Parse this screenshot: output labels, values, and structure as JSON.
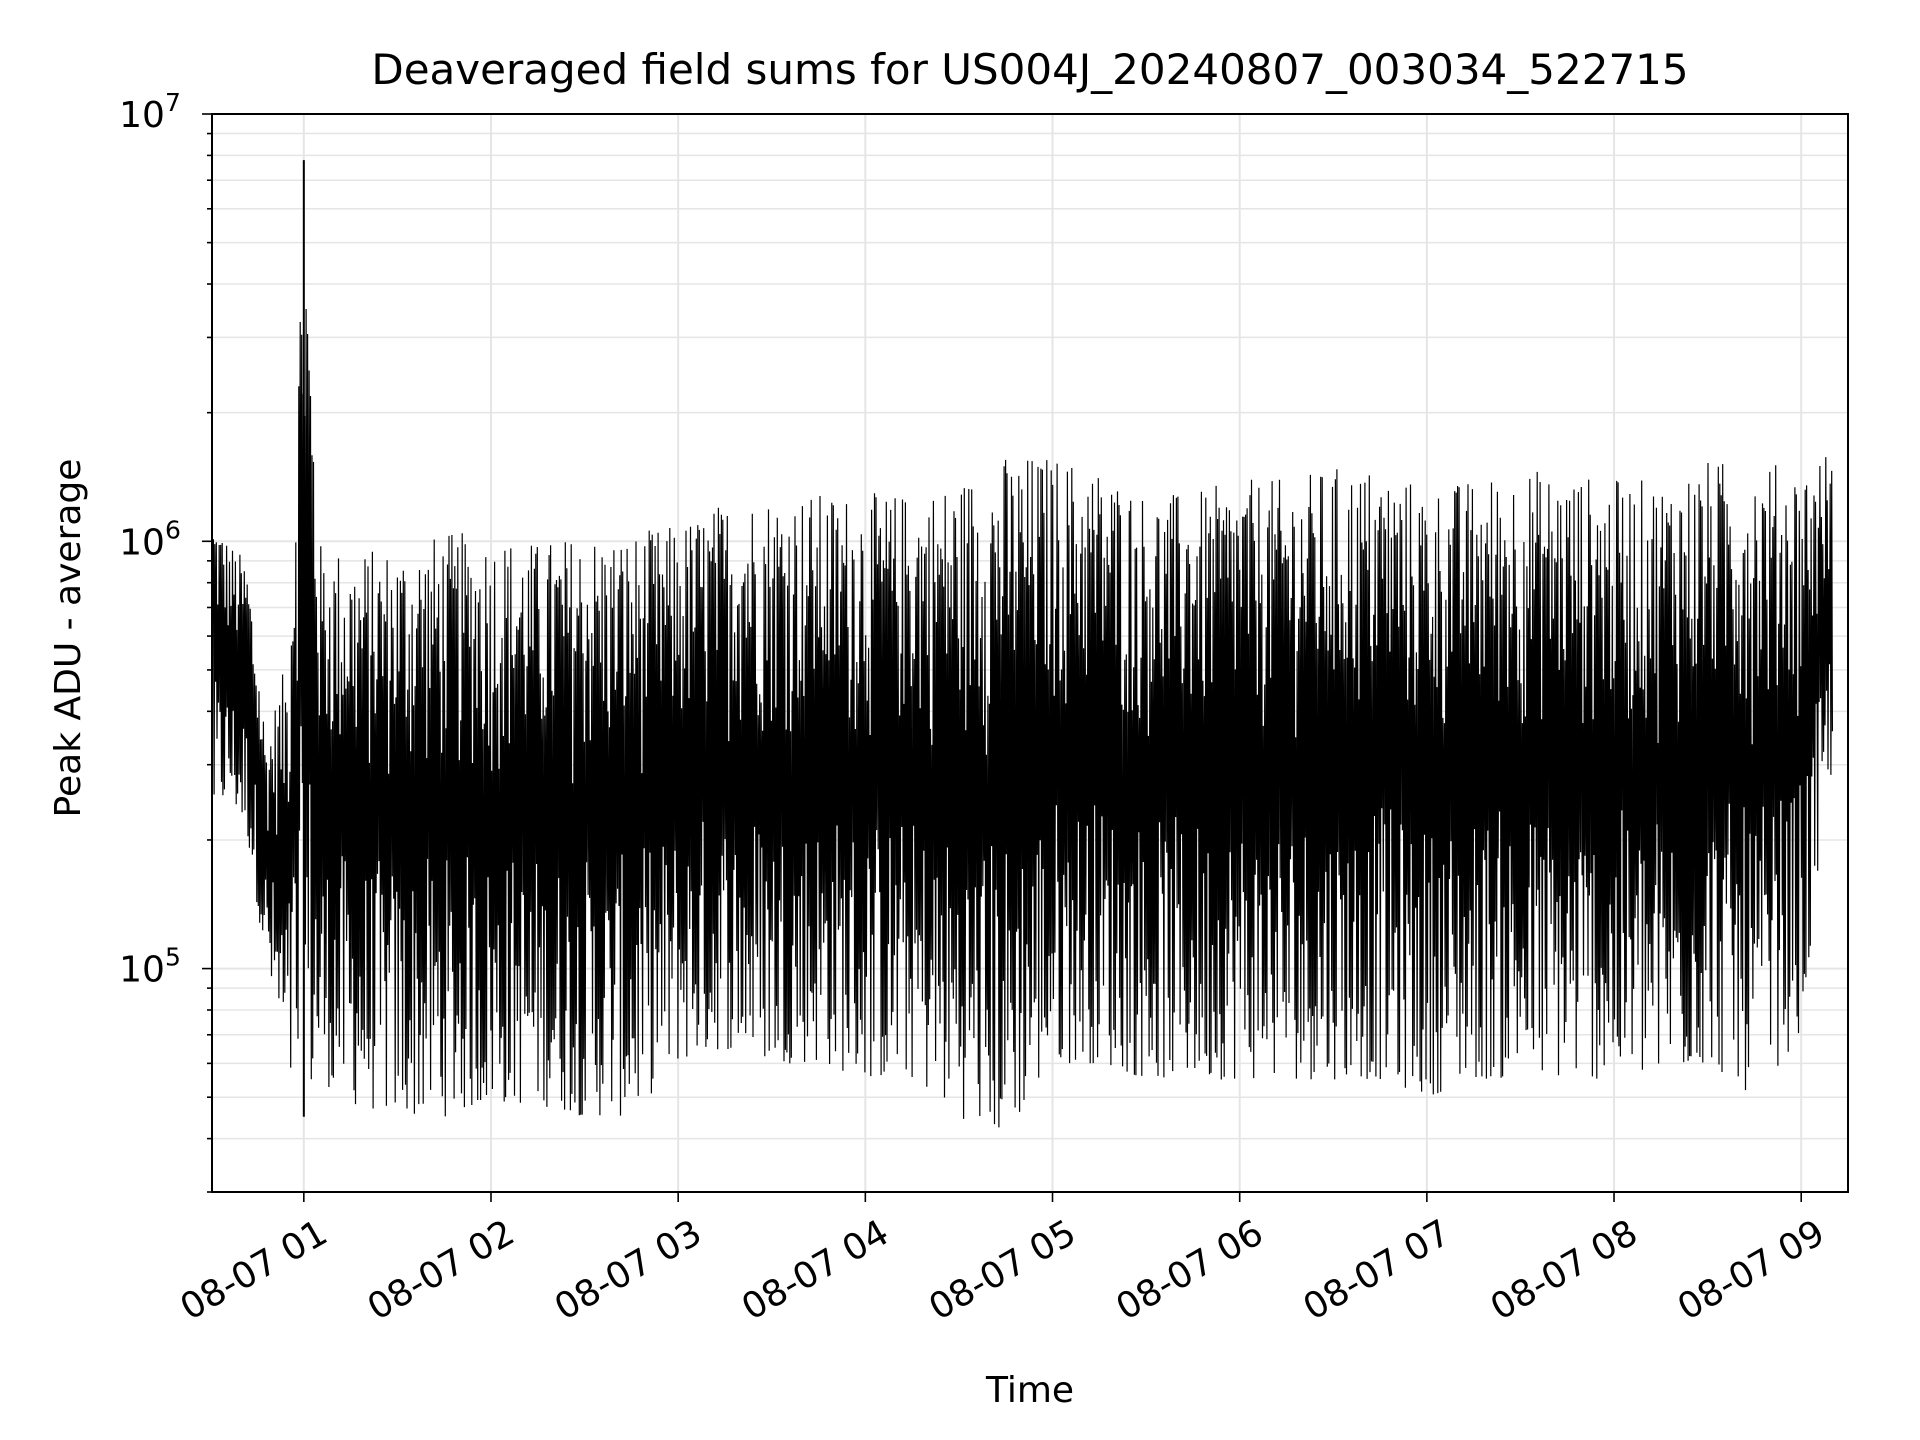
{
  "chart_data": {
    "type": "line",
    "title": "Deaveraged field sums for US004J_20240807_003034_522715",
    "xlabel": "Time",
    "ylabel": "Peak ADU - average",
    "x_axis": {
      "kind": "datetime",
      "range": [
        "2024-08-07T00:30:34",
        "2024-08-07T09:15:00"
      ],
      "ticks": [
        {
          "t": "2024-08-07T01:00",
          "label": "08-07 01"
        },
        {
          "t": "2024-08-07T02:00",
          "label": "08-07 02"
        },
        {
          "t": "2024-08-07T03:00",
          "label": "08-07 03"
        },
        {
          "t": "2024-08-07T04:00",
          "label": "08-07 04"
        },
        {
          "t": "2024-08-07T05:00",
          "label": "08-07 05"
        },
        {
          "t": "2024-08-07T06:00",
          "label": "08-07 06"
        },
        {
          "t": "2024-08-07T07:00",
          "label": "08-07 07"
        },
        {
          "t": "2024-08-07T08:00",
          "label": "08-07 08"
        },
        {
          "t": "2024-08-07T09:00",
          "label": "08-07 09"
        }
      ]
    },
    "y_axis": {
      "scale": "log",
      "range": [
        30000,
        10000000
      ],
      "ticks": [
        {
          "value": 100000,
          "base": "10",
          "exp": "5"
        },
        {
          "value": 1000000,
          "base": "10",
          "exp": "6"
        },
        {
          "value": 10000000,
          "base": "10",
          "exp": "7"
        }
      ]
    },
    "grid": true,
    "line_color": "#000000",
    "grid_color": "#e5e5e5",
    "series": [
      {
        "note_points": "approximate upper and lower envelope of the dense noisy trace",
        "x": [
          "2024-08-07T00:31",
          "2024-08-07T00:36",
          "2024-08-07T00:42",
          "2024-08-07T00:48",
          "2024-08-07T00:55",
          "2024-08-07T01:00",
          "2024-08-07T01:05",
          "2024-08-07T01:15",
          "2024-08-07T01:30",
          "2024-08-07T01:45",
          "2024-08-07T02:00",
          "2024-08-07T02:15",
          "2024-08-07T02:30",
          "2024-08-07T02:45",
          "2024-08-07T03:00",
          "2024-08-07T03:15",
          "2024-08-07T03:30",
          "2024-08-07T03:45",
          "2024-08-07T04:00",
          "2024-08-07T04:15",
          "2024-08-07T04:30",
          "2024-08-07T04:45",
          "2024-08-07T05:00",
          "2024-08-07T05:15",
          "2024-08-07T05:30",
          "2024-08-07T05:45",
          "2024-08-07T06:00",
          "2024-08-07T06:15",
          "2024-08-07T06:30",
          "2024-08-07T06:45",
          "2024-08-07T07:00",
          "2024-08-07T07:15",
          "2024-08-07T07:30",
          "2024-08-07T07:45",
          "2024-08-07T08:00",
          "2024-08-07T08:15",
          "2024-08-07T08:30",
          "2024-08-07T08:45",
          "2024-08-07T09:00",
          "2024-08-07T09:10"
        ],
        "upper": [
          1200000,
          1000000,
          900000,
          350000,
          550000,
          7800000,
          1000000,
          950000,
          980000,
          1050000,
          1050000,
          1000000,
          1050000,
          1050000,
          1100000,
          1250000,
          1300000,
          1300000,
          1300000,
          1300000,
          1400000,
          1600000,
          1600000,
          1500000,
          1300000,
          1300000,
          1400000,
          1400000,
          1500000,
          1500000,
          1350000,
          1400000,
          1500000,
          1450000,
          1400000,
          1400000,
          1550000,
          1550000,
          1500000,
          1650000
        ],
        "lower": [
          220000,
          250000,
          200000,
          100000,
          50000,
          45000,
          55000,
          48000,
          45000,
          45000,
          48000,
          48000,
          45000,
          45000,
          60000,
          65000,
          60000,
          60000,
          55000,
          55000,
          45000,
          40000,
          60000,
          60000,
          55000,
          55000,
          55000,
          55000,
          55000,
          55000,
          50000,
          55000,
          55000,
          55000,
          55000,
          55000,
          60000,
          50000,
          70000,
          300000
        ]
      }
    ]
  }
}
